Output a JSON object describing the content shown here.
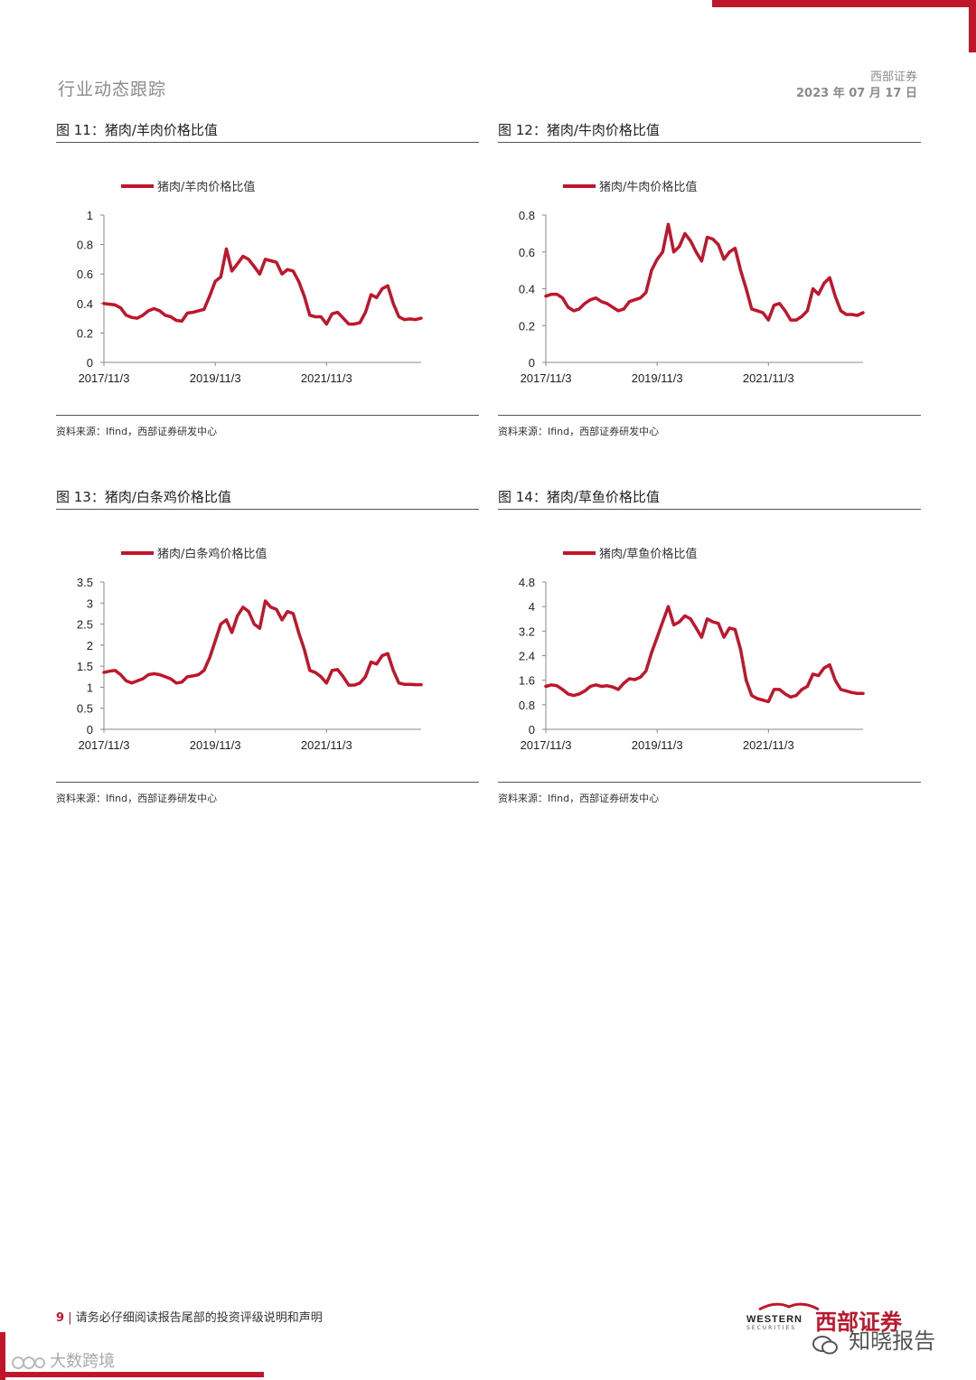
{
  "header": {
    "section_title": "行业动态跟踪",
    "company": "西部证券",
    "date": "2023 年 07 月 17 日"
  },
  "charts": [
    {
      "figure_title": "图 11：猪肉/羊肉价格比值",
      "source": "资料来源：Ifind，西部证券研发中心",
      "chart_data": {
        "type": "line",
        "title": "",
        "legend": [
          "猪肉/羊肉价格比值"
        ],
        "x_ticks": [
          "2017/11/3",
          "2019/11/3",
          "2021/11/3"
        ],
        "y_ticks": [
          "0",
          "0.2",
          "0.4",
          "0.6",
          "0.8",
          "1"
        ],
        "ylim": [
          0,
          1
        ],
        "series": [
          {
            "name": "猪肉/羊肉价格比值",
            "values": [
              0.4,
              0.395,
              0.39,
              0.37,
              0.32,
              0.305,
              0.3,
              0.32,
              0.35,
              0.365,
              0.35,
              0.32,
              0.31,
              0.285,
              0.28,
              0.335,
              0.34,
              0.35,
              0.36,
              0.45,
              0.55,
              0.58,
              0.77,
              0.62,
              0.67,
              0.72,
              0.7,
              0.65,
              0.6,
              0.7,
              0.69,
              0.68,
              0.6,
              0.63,
              0.62,
              0.55,
              0.45,
              0.32,
              0.31,
              0.31,
              0.26,
              0.33,
              0.34,
              0.3,
              0.26,
              0.26,
              0.27,
              0.34,
              0.46,
              0.44,
              0.5,
              0.52,
              0.4,
              0.31,
              0.29,
              0.295,
              0.29,
              0.3
            ]
          }
        ]
      }
    },
    {
      "figure_title": "图 12：猪肉/牛肉价格比值",
      "source": "资料来源：Ifind，西部证券研发中心",
      "chart_data": {
        "type": "line",
        "title": "",
        "legend": [
          "猪肉/牛肉价格比值"
        ],
        "x_ticks": [
          "2017/11/3",
          "2019/11/3",
          "2021/11/3"
        ],
        "y_ticks": [
          "0",
          "0.2",
          "0.4",
          "0.6",
          "0.8"
        ],
        "ylim": [
          0,
          0.8
        ],
        "series": [
          {
            "name": "猪肉/牛肉价格比值",
            "values": [
              0.36,
              0.37,
              0.37,
              0.35,
              0.3,
              0.28,
              0.29,
              0.32,
              0.34,
              0.35,
              0.33,
              0.32,
              0.3,
              0.28,
              0.29,
              0.33,
              0.34,
              0.35,
              0.38,
              0.5,
              0.56,
              0.6,
              0.75,
              0.6,
              0.63,
              0.7,
              0.66,
              0.6,
              0.55,
              0.68,
              0.67,
              0.64,
              0.56,
              0.6,
              0.62,
              0.5,
              0.4,
              0.29,
              0.28,
              0.27,
              0.23,
              0.31,
              0.32,
              0.28,
              0.23,
              0.23,
              0.25,
              0.28,
              0.4,
              0.37,
              0.43,
              0.46,
              0.36,
              0.28,
              0.26,
              0.26,
              0.255,
              0.27
            ]
          }
        ]
      }
    },
    {
      "figure_title": "图 13：猪肉/白条鸡价格比值",
      "source": "资料来源：Ifind，西部证券研发中心",
      "chart_data": {
        "type": "line",
        "title": "",
        "legend": [
          "猪肉/白条鸡价格比值"
        ],
        "x_ticks": [
          "2017/11/3",
          "2019/11/3",
          "2021/11/3"
        ],
        "y_ticks": [
          "0",
          "0.5",
          "1",
          "1.5",
          "2",
          "2.5",
          "3",
          "3.5"
        ],
        "ylim": [
          0,
          3.5
        ],
        "series": [
          {
            "name": "猪肉/白条鸡价格比值",
            "values": [
              1.35,
              1.38,
              1.4,
              1.3,
              1.15,
              1.1,
              1.15,
              1.2,
              1.3,
              1.32,
              1.3,
              1.25,
              1.2,
              1.1,
              1.12,
              1.25,
              1.27,
              1.3,
              1.4,
              1.7,
              2.1,
              2.5,
              2.6,
              2.3,
              2.7,
              2.9,
              2.8,
              2.5,
              2.4,
              3.05,
              2.9,
              2.85,
              2.6,
              2.8,
              2.75,
              2.3,
              1.9,
              1.4,
              1.35,
              1.25,
              1.1,
              1.4,
              1.42,
              1.25,
              1.05,
              1.05,
              1.1,
              1.25,
              1.6,
              1.55,
              1.75,
              1.8,
              1.4,
              1.1,
              1.07,
              1.07,
              1.06,
              1.06
            ]
          }
        ]
      }
    },
    {
      "figure_title": "图 14：猪肉/草鱼价格比值",
      "source": "资料来源：Ifind，西部证券研发中心",
      "chart_data": {
        "type": "line",
        "title": "",
        "legend": [
          "猪肉/草鱼价格比值"
        ],
        "x_ticks": [
          "2017/11/3",
          "2019/11/3",
          "2021/11/3"
        ],
        "y_ticks": [
          "0",
          "0.8",
          "1.6",
          "2.4",
          "3.2",
          "4",
          "4.8"
        ],
        "ylim": [
          0,
          4.8
        ],
        "series": [
          {
            "name": "猪肉/草鱼价格比值",
            "values": [
              1.4,
              1.45,
              1.42,
              1.3,
              1.15,
              1.1,
              1.15,
              1.25,
              1.4,
              1.45,
              1.4,
              1.42,
              1.38,
              1.3,
              1.5,
              1.65,
              1.62,
              1.7,
              1.9,
              2.5,
              3.0,
              3.5,
              4.0,
              3.4,
              3.5,
              3.7,
              3.6,
              3.3,
              3.0,
              3.6,
              3.5,
              3.45,
              3.0,
              3.3,
              3.25,
              2.6,
              1.6,
              1.1,
              1.0,
              0.95,
              0.9,
              1.3,
              1.3,
              1.15,
              1.05,
              1.1,
              1.3,
              1.4,
              1.8,
              1.75,
              2.0,
              2.1,
              1.6,
              1.3,
              1.25,
              1.2,
              1.17,
              1.17
            ]
          }
        ]
      }
    }
  ],
  "footer": {
    "page_number": "9",
    "disclaimer": "请务必仔细阅读报告尾部的投资评级说明和声明",
    "logo_en": "WESTERN",
    "logo_en_sub": "SECURITIES",
    "logo_cn": "西部证券",
    "watermark_right": "知晓报告",
    "watermark_left": "大数跨境"
  },
  "colors": {
    "accent": "#c0162c",
    "line": "#c0162c"
  }
}
